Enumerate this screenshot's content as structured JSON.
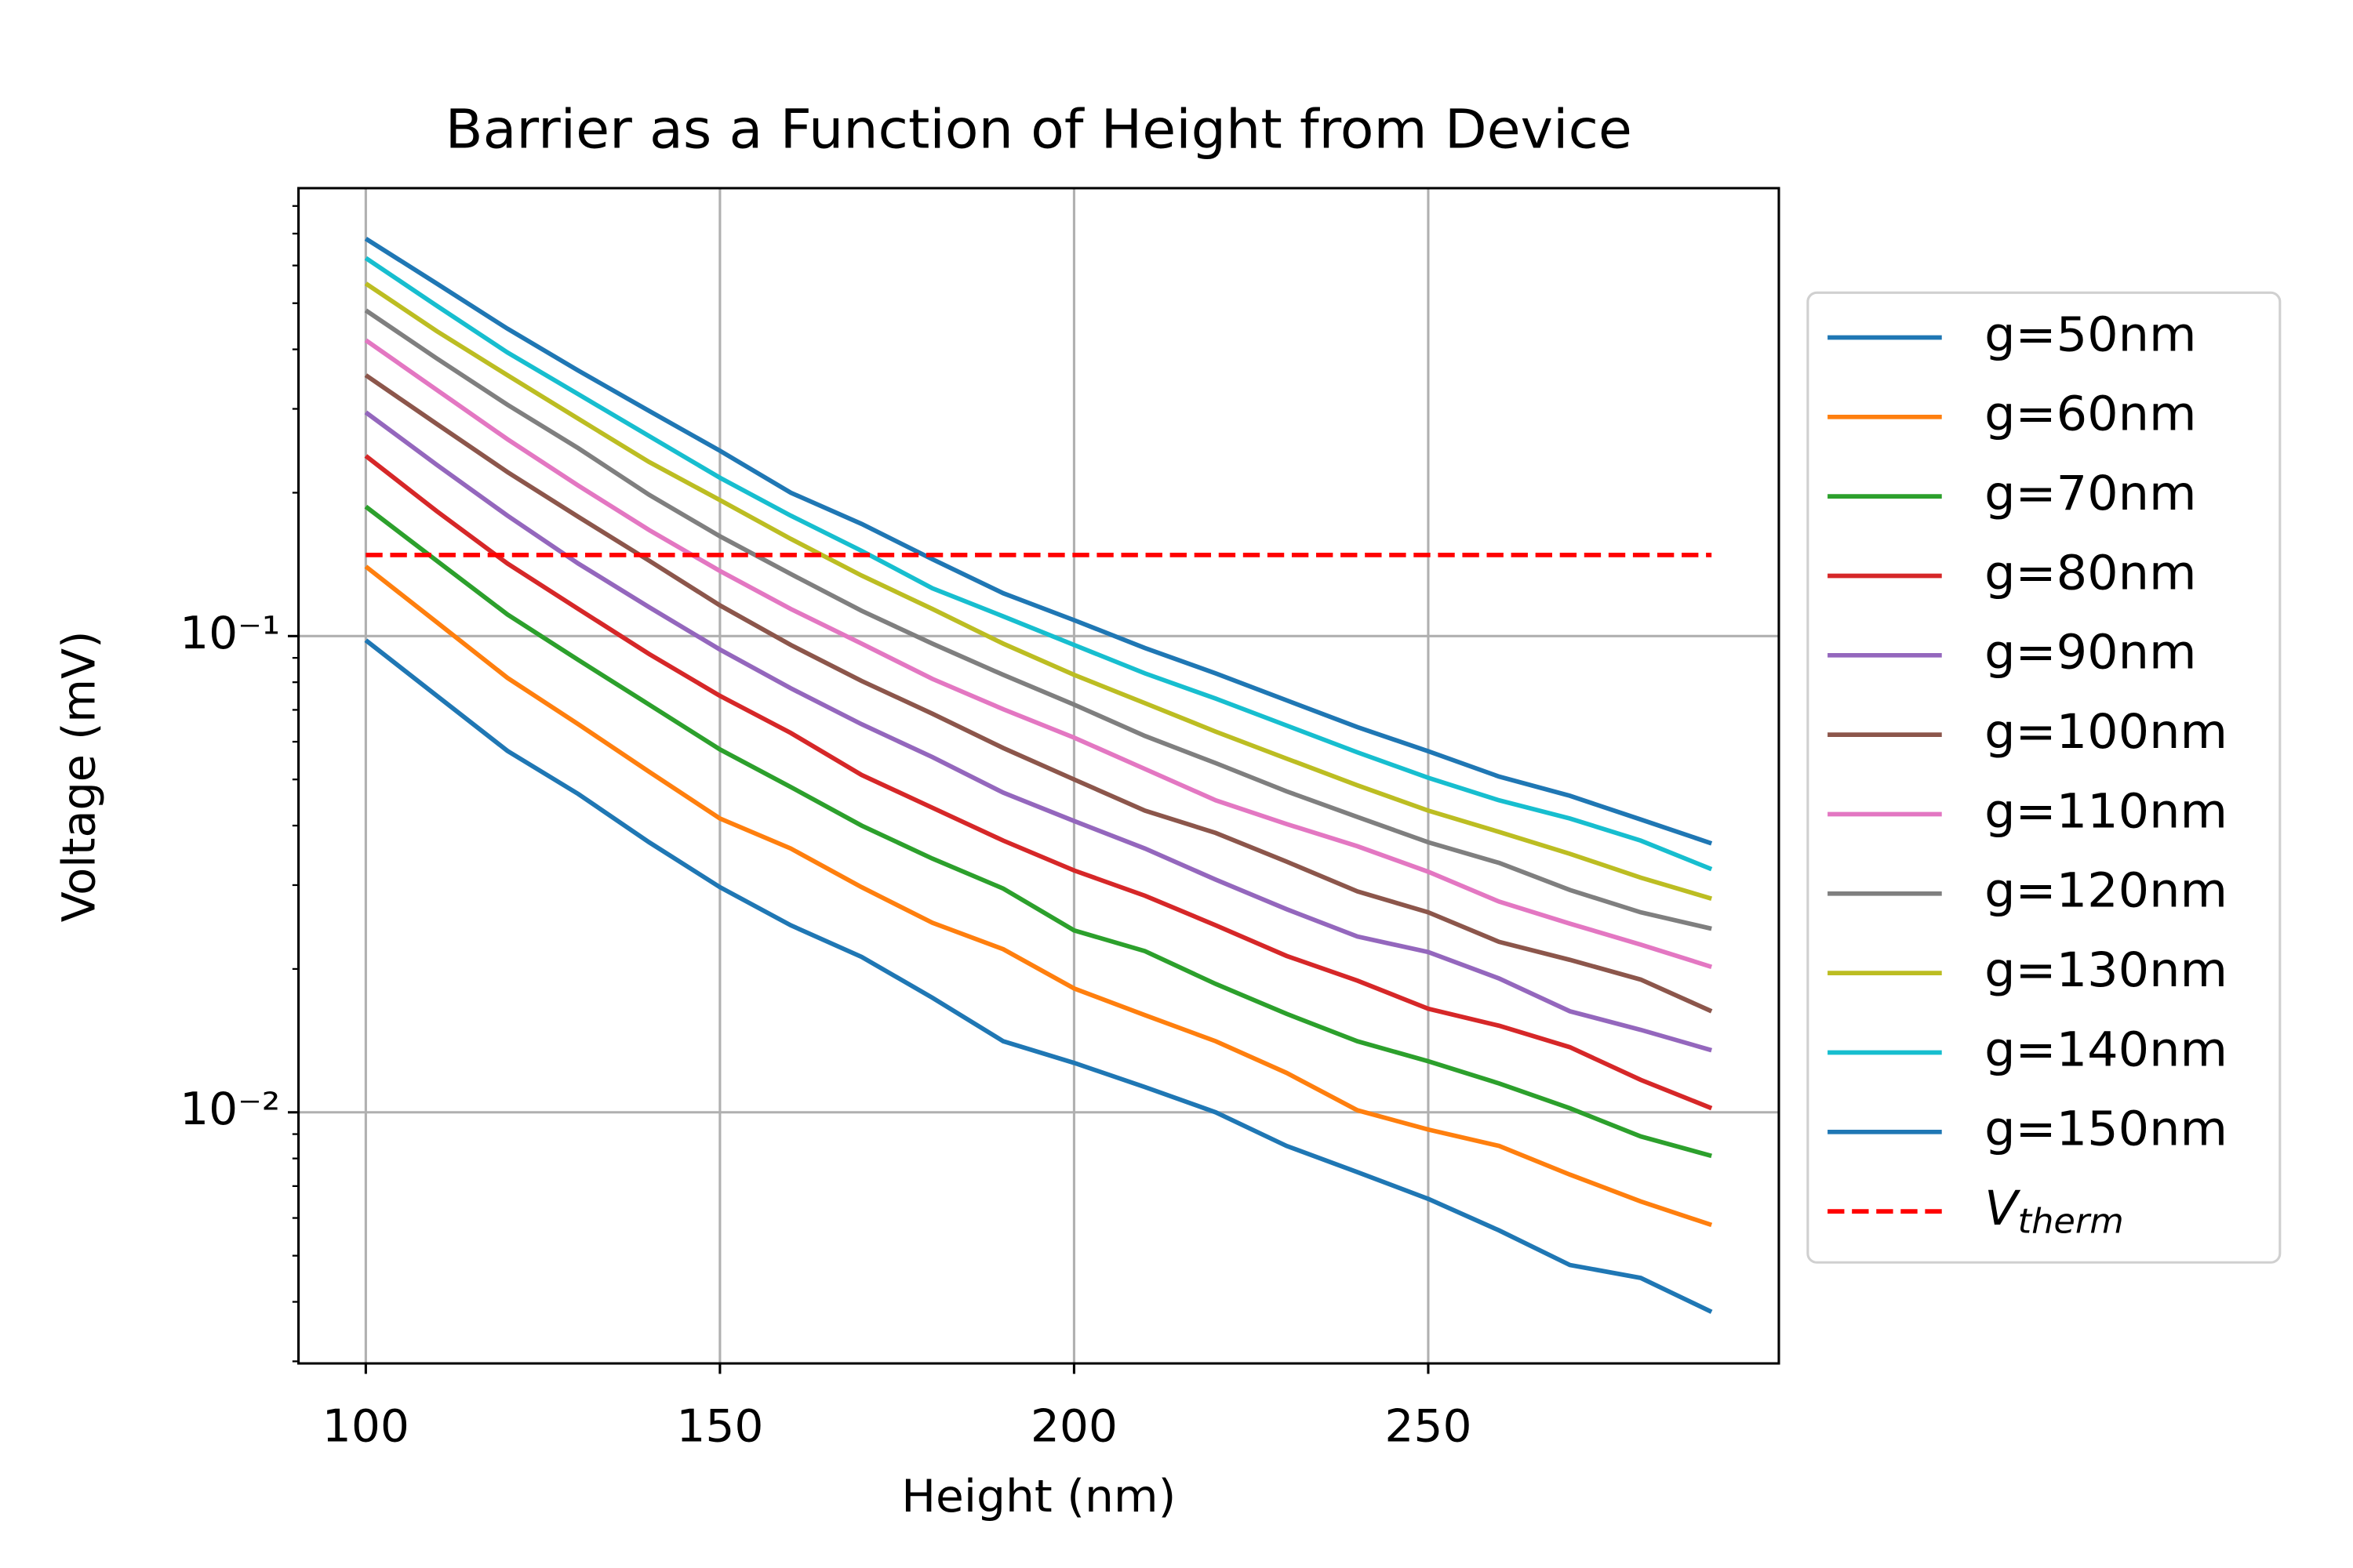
{
  "chart_data": {
    "type": "line",
    "title": "Barrier as a Function of Height from Device",
    "x_label": "Height (nm)",
    "y_label": "Voltage (mV)",
    "xlim": [
      90.5,
      299.5
    ],
    "xticks": [
      100,
      150,
      200,
      250
    ],
    "ylim": [
      0.00297,
      0.872
    ],
    "y_scale": "log",
    "yticks": [
      {
        "value": 0.01,
        "label": "10⁻²"
      },
      {
        "value": 0.1,
        "label": "10⁻¹"
      }
    ],
    "yminorticks": [
      0.003,
      0.004,
      0.005,
      0.006,
      0.007,
      0.008,
      0.009,
      0.02,
      0.03,
      0.04,
      0.05,
      0.06,
      0.07,
      0.08,
      0.09,
      0.2,
      0.3,
      0.4,
      0.5,
      0.6,
      0.7,
      0.8
    ],
    "grid": true,
    "legend": "outside right",
    "x": [
      100,
      110,
      120,
      130,
      140,
      150,
      160,
      170,
      180,
      190,
      200,
      210,
      220,
      230,
      240,
      250,
      260,
      270,
      280,
      290
    ],
    "series": [
      {
        "name": "g=50nm",
        "color": "#1f77b4",
        "values": [
          0.098,
          0.075,
          0.0574,
          0.0466,
          0.0369,
          0.0297,
          0.0247,
          0.0212,
          0.0174,
          0.0141,
          0.0127,
          0.0113,
          0.01,
          0.0085,
          0.00749,
          0.00658,
          0.00565,
          0.00478,
          0.00449,
          0.00381
        ]
      },
      {
        "name": "g=60nm",
        "color": "#ff7f0e",
        "values": [
          0.14,
          0.107,
          0.0817,
          0.0653,
          0.0519,
          0.0414,
          0.0358,
          0.0297,
          0.025,
          0.022,
          0.0182,
          0.016,
          0.0141,
          0.0121,
          0.0101,
          0.0092,
          0.0085,
          0.0074,
          0.0065,
          0.0058
        ]
      },
      {
        "name": "g=70nm",
        "color": "#2ca02c",
        "values": [
          0.187,
          0.144,
          0.111,
          0.0891,
          0.0718,
          0.0578,
          0.0482,
          0.04,
          0.0341,
          0.0295,
          0.0241,
          0.0218,
          0.0186,
          0.0161,
          0.0141,
          0.0128,
          0.0115,
          0.0102,
          0.0089,
          0.0081
        ]
      },
      {
        "name": "g=80nm",
        "color": "#d62728",
        "values": [
          0.239,
          0.183,
          0.142,
          0.114,
          0.0917,
          0.0749,
          0.0626,
          0.0511,
          0.0436,
          0.0372,
          0.0322,
          0.0285,
          0.0247,
          0.0213,
          0.0189,
          0.0165,
          0.0152,
          0.0137,
          0.0117,
          0.0102
        ]
      },
      {
        "name": "g=90nm",
        "color": "#9467bd",
        "values": [
          0.295,
          0.229,
          0.179,
          0.142,
          0.115,
          0.0937,
          0.0777,
          0.0653,
          0.0557,
          0.0469,
          0.0409,
          0.0358,
          0.0308,
          0.0267,
          0.0234,
          0.0217,
          0.0191,
          0.0163,
          0.0149,
          0.0135
        ]
      },
      {
        "name": "g=100nm",
        "color": "#8c564b",
        "values": [
          0.353,
          0.279,
          0.221,
          0.178,
          0.144,
          0.116,
          0.0958,
          0.0805,
          0.0687,
          0.0582,
          0.05,
          0.043,
          0.0386,
          0.0336,
          0.0291,
          0.0263,
          0.0228,
          0.0209,
          0.019,
          0.0163
        ]
      },
      {
        "name": "g=110nm",
        "color": "#e377c2",
        "values": [
          0.418,
          0.329,
          0.259,
          0.207,
          0.167,
          0.137,
          0.114,
          0.0964,
          0.0813,
          0.0702,
          0.0612,
          0.0526,
          0.0452,
          0.0403,
          0.0362,
          0.032,
          0.0277,
          0.0249,
          0.0225,
          0.0202
        ]
      },
      {
        "name": "g=120nm",
        "color": "#7f7f7f",
        "values": [
          0.483,
          0.383,
          0.306,
          0.248,
          0.198,
          0.162,
          0.135,
          0.113,
          0.0964,
          0.0829,
          0.0718,
          0.0617,
          0.0541,
          0.0472,
          0.0417,
          0.0369,
          0.0334,
          0.0293,
          0.0263,
          0.0243
        ]
      },
      {
        "name": "g=130nm",
        "color": "#bcbd22",
        "values": [
          0.55,
          0.437,
          0.353,
          0.286,
          0.232,
          0.193,
          0.16,
          0.134,
          0.114,
          0.0964,
          0.0829,
          0.0723,
          0.063,
          0.0553,
          0.0486,
          0.043,
          0.0388,
          0.0349,
          0.0311,
          0.0281
        ]
      },
      {
        "name": "g=140nm",
        "color": "#17becf",
        "values": [
          0.622,
          0.494,
          0.394,
          0.322,
          0.263,
          0.215,
          0.179,
          0.151,
          0.126,
          0.11,
          0.0958,
          0.0835,
          0.0739,
          0.0649,
          0.057,
          0.0504,
          0.0452,
          0.0414,
          0.0372,
          0.0324
        ]
      },
      {
        "name": "g=150nm",
        "color": "#1f77b4",
        "values": [
          0.683,
          0.55,
          0.442,
          0.361,
          0.297,
          0.245,
          0.2,
          0.172,
          0.145,
          0.123,
          0.108,
          0.0944,
          0.0835,
          0.0733,
          0.0644,
          0.0573,
          0.0507,
          0.0462,
          0.0412,
          0.0367
        ]
      }
    ],
    "reference_line": {
      "name": "Vtherm",
      "color": "#ff0000",
      "style": "dashed",
      "value": 0.148,
      "x_from": 100,
      "x_to": 290
    }
  }
}
